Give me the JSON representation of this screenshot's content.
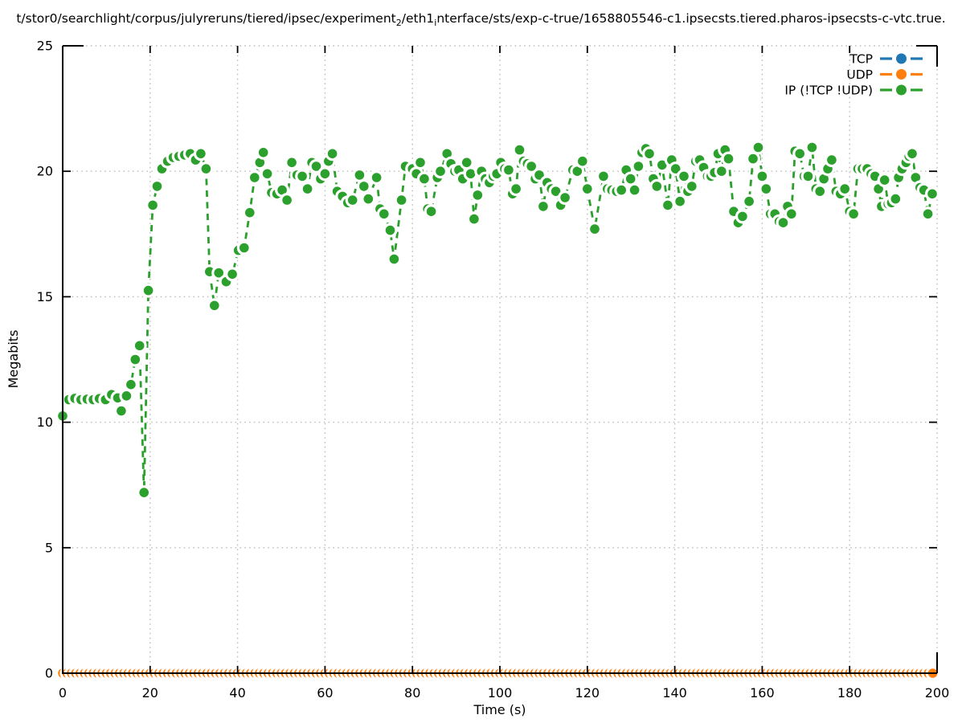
{
  "title": {
    "part1": "t/stor0/searchlight/corpus/julyreruns/tiered/ipsec/experiment",
    "sub1": "2",
    "part2": "/eth1",
    "sub2": "i",
    "part3": "nterface/sts/exp-c-true/1658805546-c1.ipsecsts.tiered.pharos-ipsecsts-c-vtc.true."
  },
  "chart_data": {
    "type": "line",
    "title_is_clipped_path": true,
    "xlabel": "Time (s)",
    "ylabel": "Megabits",
    "xlim": [
      0,
      200
    ],
    "ylim": [
      0,
      25
    ],
    "x_ticks": [
      0,
      20,
      40,
      60,
      80,
      100,
      120,
      140,
      160,
      180,
      200
    ],
    "y_ticks": [
      0,
      5,
      10,
      15,
      20,
      25
    ],
    "grid": true,
    "legend_position": "top-right",
    "marker": "filled-circle-with-white-halo",
    "line_style": "dashed",
    "colors": {
      "tcp": "#1f77b4",
      "udp": "#ff7f0e",
      "ip": "#2ca02c",
      "grid": "#bdbdbd",
      "axis": "#000000",
      "background": "#ffffff"
    },
    "series": [
      {
        "name": "TCP",
        "color_key": "tcp",
        "constant_value": 0,
        "t_start": 0,
        "t_end": 199,
        "t_step": 1
      },
      {
        "name": "UDP",
        "color_key": "udp",
        "constant_value": 0,
        "t_start": 0,
        "t_end": 199,
        "t_step": 1
      },
      {
        "name": "IP (!TCP  !UDP)",
        "color_key": "ip",
        "points": [
          [
            0,
            10.25
          ],
          [
            1.4,
            10.9
          ],
          [
            2.8,
            10.95
          ],
          [
            4.2,
            10.9
          ],
          [
            5.6,
            10.92
          ],
          [
            7,
            10.9
          ],
          [
            8.4,
            10.94
          ],
          [
            9.8,
            10.9
          ],
          [
            11.2,
            11.1
          ],
          [
            12.6,
            10.97
          ],
          [
            13.4,
            10.45
          ],
          [
            14.6,
            11.05
          ],
          [
            15.6,
            11.5
          ],
          [
            16.6,
            12.5
          ],
          [
            17.6,
            13.05
          ],
          [
            18.6,
            7.2
          ],
          [
            19.6,
            15.25
          ],
          [
            20.6,
            18.65
          ],
          [
            21.6,
            19.4
          ],
          [
            22.7,
            20.1
          ],
          [
            24,
            20.4
          ],
          [
            25.3,
            20.55
          ],
          [
            26.6,
            20.6
          ],
          [
            27.9,
            20.65
          ],
          [
            29.2,
            20.7
          ],
          [
            30.4,
            20.45
          ],
          [
            31.6,
            20.7
          ],
          [
            32.8,
            20.1
          ],
          [
            33.6,
            16.0
          ],
          [
            34.7,
            14.65
          ],
          [
            35.7,
            15.95
          ],
          [
            37.4,
            15.6
          ],
          [
            38.8,
            15.9
          ],
          [
            40.2,
            16.85
          ],
          [
            41.5,
            16.95
          ],
          [
            42.8,
            18.35
          ],
          [
            43.9,
            19.75
          ],
          [
            45.1,
            20.35
          ],
          [
            45.9,
            20.75
          ],
          [
            46.8,
            19.9
          ],
          [
            47.8,
            19.15
          ],
          [
            49,
            19.1
          ],
          [
            50.2,
            19.25
          ],
          [
            51.3,
            18.85
          ],
          [
            52.4,
            20.35
          ],
          [
            53.6,
            19.85
          ],
          [
            54.8,
            19.8
          ],
          [
            56,
            19.3
          ],
          [
            57,
            20.35
          ],
          [
            58,
            20.2
          ],
          [
            59,
            19.7
          ],
          [
            60,
            19.9
          ],
          [
            60.8,
            20.4
          ],
          [
            61.7,
            20.7
          ],
          [
            62.8,
            19.2
          ],
          [
            64,
            19.0
          ],
          [
            65.2,
            18.75
          ],
          [
            66.3,
            18.85
          ],
          [
            67.9,
            19.85
          ],
          [
            68.9,
            19.4
          ],
          [
            69.9,
            18.9
          ],
          [
            71.8,
            19.75
          ],
          [
            72.6,
            18.5
          ],
          [
            73.5,
            18.3
          ],
          [
            74.9,
            17.65
          ],
          [
            75.8,
            16.5
          ],
          [
            77.5,
            18.85
          ],
          [
            78.4,
            20.2
          ],
          [
            80,
            20.1
          ],
          [
            80.9,
            19.9
          ],
          [
            81.8,
            20.35
          ],
          [
            82.7,
            19.7
          ],
          [
            83.5,
            18.5
          ],
          [
            84.3,
            18.4
          ],
          [
            85.7,
            19.75
          ],
          [
            86.4,
            20.0
          ],
          [
            87.9,
            20.7
          ],
          [
            88.8,
            20.3
          ],
          [
            89.7,
            20.0
          ],
          [
            90.6,
            20.05
          ],
          [
            91.5,
            19.7
          ],
          [
            92.4,
            20.35
          ],
          [
            93.3,
            19.9
          ],
          [
            94.1,
            18.1
          ],
          [
            94.9,
            19.05
          ],
          [
            95.8,
            20.0
          ],
          [
            96.7,
            19.7
          ],
          [
            97.6,
            19.55
          ],
          [
            98.5,
            19.8
          ],
          [
            99.3,
            19.9
          ],
          [
            100.2,
            20.35
          ],
          [
            101.1,
            20.1
          ],
          [
            102,
            20.05
          ],
          [
            102.9,
            19.1
          ],
          [
            103.7,
            19.3
          ],
          [
            104.5,
            20.85
          ],
          [
            105.4,
            20.4
          ],
          [
            106.3,
            20.3
          ],
          [
            107.2,
            20.2
          ],
          [
            108.1,
            19.7
          ],
          [
            109,
            19.85
          ],
          [
            109.9,
            18.6
          ],
          [
            110.8,
            19.55
          ],
          [
            111.8,
            19.3
          ],
          [
            112.8,
            19.2
          ],
          [
            113.9,
            18.65
          ],
          [
            114.9,
            18.95
          ],
          [
            116.7,
            20.05
          ],
          [
            117.7,
            20.0
          ],
          [
            118.9,
            20.4
          ],
          [
            120,
            19.3
          ],
          [
            121.7,
            17.7
          ],
          [
            123.7,
            19.8
          ],
          [
            124.6,
            19.3
          ],
          [
            125.6,
            19.25
          ],
          [
            126.7,
            19.2
          ],
          [
            127.8,
            19.25
          ],
          [
            128.9,
            20.05
          ],
          [
            129.9,
            19.7
          ],
          [
            130.8,
            19.25
          ],
          [
            131.7,
            20.2
          ],
          [
            132.5,
            20.75
          ],
          [
            133.4,
            20.9
          ],
          [
            134.2,
            20.7
          ],
          [
            135.1,
            19.7
          ],
          [
            135.9,
            19.4
          ],
          [
            137.1,
            20.25
          ],
          [
            138.4,
            18.65
          ],
          [
            139.3,
            20.45
          ],
          [
            140.2,
            20.1
          ],
          [
            141.2,
            18.8
          ],
          [
            142.1,
            19.8
          ],
          [
            143,
            19.2
          ],
          [
            143.9,
            19.4
          ],
          [
            144.8,
            20.4
          ],
          [
            145.7,
            20.45
          ],
          [
            146.6,
            20.15
          ],
          [
            147.5,
            19.8
          ],
          [
            148.3,
            19.8
          ],
          [
            149.1,
            19.95
          ],
          [
            149.9,
            20.7
          ],
          [
            150.7,
            20.0
          ],
          [
            151.5,
            20.85
          ],
          [
            152.3,
            20.5
          ],
          [
            153.5,
            18.4
          ],
          [
            154.5,
            17.95
          ],
          [
            155.5,
            18.2
          ],
          [
            157,
            18.8
          ],
          [
            157.9,
            20.5
          ],
          [
            159.1,
            20.95
          ],
          [
            160,
            19.8
          ],
          [
            160.9,
            19.3
          ],
          [
            161.9,
            18.3
          ],
          [
            162.9,
            18.3
          ],
          [
            163.9,
            18.0
          ],
          [
            164.8,
            17.95
          ],
          [
            165.8,
            18.6
          ],
          [
            166.7,
            18.3
          ],
          [
            167.5,
            20.8
          ],
          [
            168.6,
            20.7
          ],
          [
            169.6,
            19.8
          ],
          [
            170.5,
            19.8
          ],
          [
            171.4,
            20.95
          ],
          [
            172.3,
            19.3
          ],
          [
            173.2,
            19.2
          ],
          [
            174.1,
            19.7
          ],
          [
            175,
            20.1
          ],
          [
            175.9,
            20.45
          ],
          [
            176.9,
            19.2
          ],
          [
            177.9,
            19.1
          ],
          [
            178.9,
            19.3
          ],
          [
            180,
            18.4
          ],
          [
            180.9,
            18.3
          ],
          [
            181.9,
            20.1
          ],
          [
            182.9,
            20.1
          ],
          [
            184,
            20.1
          ],
          [
            184.9,
            19.9
          ],
          [
            185.8,
            19.8
          ],
          [
            186.6,
            19.3
          ],
          [
            187.3,
            18.6
          ],
          [
            188,
            19.65
          ],
          [
            188.8,
            18.7
          ],
          [
            189.6,
            18.75
          ],
          [
            190.5,
            18.9
          ],
          [
            191.2,
            19.75
          ],
          [
            192,
            20.1
          ],
          [
            192.9,
            20.35
          ],
          [
            193.6,
            20.6
          ],
          [
            194.3,
            20.7
          ],
          [
            195.1,
            19.75
          ],
          [
            196.1,
            19.35
          ],
          [
            197,
            19.25
          ],
          [
            197.9,
            18.3
          ],
          [
            198.9,
            19.1
          ]
        ]
      }
    ]
  }
}
